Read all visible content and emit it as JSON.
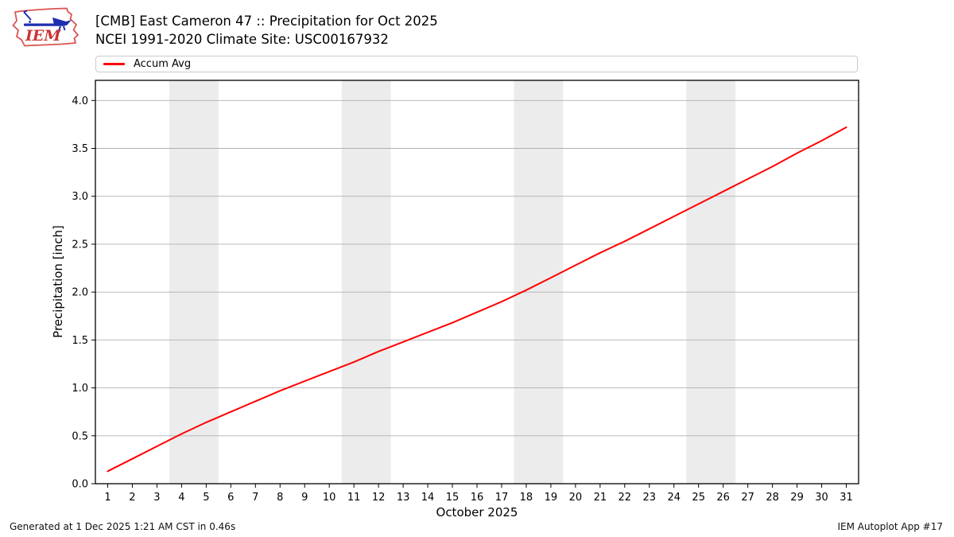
{
  "header": {
    "logo_text": "IEM",
    "title_line1": "[CMB] East Cameron 47 :: Precipitation for Oct 2025",
    "title_line2": "NCEI 1991-2020 Climate Site: USC00167932"
  },
  "legend": {
    "items": [
      {
        "label": "Accum Avg",
        "color": "#ff0000"
      }
    ],
    "position": "top"
  },
  "footer": {
    "left": "Generated at 1 Dec 2025 1:21 AM CST in 0.46s",
    "right": "IEM Autoplot App #17"
  },
  "colors": {
    "line": "#ff0000",
    "grid": "#b0b0b0",
    "weekend_band": "#ececec",
    "spine": "#000000",
    "legend_border": "#cccccc",
    "logo_red": "#d9534f",
    "logo_blue": "#1f2db0"
  },
  "chart_data": {
    "type": "line",
    "title": "[CMB] East Cameron 47 :: Precipitation for Oct 2025",
    "subtitle": "NCEI 1991-2020 Climate Site: USC00167932",
    "xlabel": "October 2025",
    "ylabel": "Precipitation [inch]",
    "x": [
      1,
      2,
      3,
      4,
      5,
      6,
      7,
      8,
      9,
      10,
      11,
      12,
      13,
      14,
      15,
      16,
      17,
      18,
      19,
      20,
      21,
      22,
      23,
      24,
      25,
      26,
      27,
      28,
      29,
      30,
      31
    ],
    "series": [
      {
        "name": "Accum Avg",
        "color": "#ff0000",
        "values": [
          0.13,
          0.26,
          0.39,
          0.52,
          0.64,
          0.75,
          0.86,
          0.97,
          1.07,
          1.17,
          1.27,
          1.38,
          1.48,
          1.58,
          1.68,
          1.79,
          1.9,
          2.02,
          2.15,
          2.28,
          2.41,
          2.53,
          2.66,
          2.79,
          2.92,
          3.05,
          3.18,
          3.31,
          3.45,
          3.58,
          3.72
        ]
      }
    ],
    "yticks": [
      0.0,
      0.5,
      1.0,
      1.5,
      2.0,
      2.5,
      3.0,
      3.5,
      4.0
    ],
    "xlim": [
      0.5,
      31.5
    ],
    "ylim": [
      0,
      4.21
    ],
    "grid": "horizontal",
    "weekend_bands": [
      [
        3.5,
        5.5
      ],
      [
        10.5,
        12.5
      ],
      [
        17.5,
        19.5
      ],
      [
        24.5,
        26.5
      ]
    ],
    "legend_position": "top"
  }
}
